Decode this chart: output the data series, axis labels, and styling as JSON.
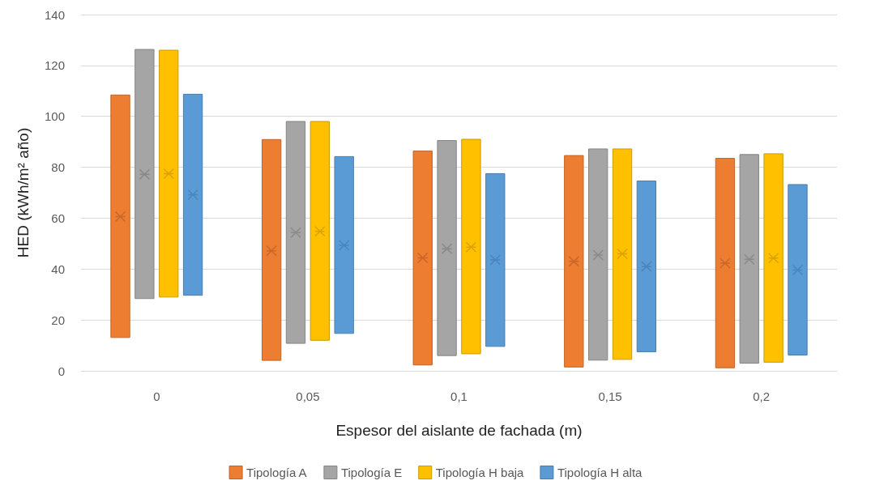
{
  "chart_data": {
    "type": "bar",
    "xlabel": "Espesor del aislante de fachada (m)",
    "ylabel": "HED (kWh/m² año)",
    "categories": [
      "0",
      "0,05",
      "0,1",
      "0,15",
      "0,2"
    ],
    "ylim": [
      0,
      140
    ],
    "yticks": [
      0,
      20,
      40,
      60,
      80,
      100,
      120,
      140
    ],
    "grid": "y",
    "legend": "bottom",
    "marker": "cross",
    "series": [
      {
        "name": "Tipología A",
        "color": "#ed7d31",
        "base": [
          13.1,
          4.1,
          2.3,
          1.5,
          1.2
        ],
        "values": [
          95.3,
          86.8,
          84.1,
          83.1,
          82.3
        ]
      },
      {
        "name": "Tipología E",
        "color": "#a5a5a5",
        "base": [
          28.4,
          10.8,
          6,
          4.2,
          3
        ],
        "values": [
          97.9,
          87.2,
          84.5,
          83,
          82
        ]
      },
      {
        "name": "Tipología H baja",
        "color": "#ffc000",
        "base": [
          29,
          12,
          6.7,
          4.5,
          3.4
        ],
        "values": [
          97,
          86,
          84.3,
          82.7,
          81.9
        ]
      },
      {
        "name": "Tipología H alta",
        "color": "#5b9bd5",
        "base": [
          29.7,
          14.7,
          9.6,
          7.5,
          6.2
        ],
        "values": [
          79,
          69.5,
          67.9,
          67.1,
          67
        ]
      },
      {
        "type": "scatter",
        "color": "#c8672a",
        "x": [
          "0",
          "0,05",
          "0,1",
          "0,15",
          "0,2"
        ],
        "values": [
          60.6,
          47.2,
          44.4,
          43,
          42.3
        ]
      },
      {
        "type": "scatter",
        "color": "#8a8a8a",
        "x": [
          "0",
          "0,05",
          "0,1",
          "0,15",
          "0,2"
        ],
        "values": [
          77.2,
          54.3,
          48,
          45.5,
          43.8
        ]
      },
      {
        "type": "scatter",
        "color": "#d9a300",
        "x": [
          "0",
          "0,05",
          "0,1",
          "0,15",
          "0,2"
        ],
        "values": [
          77.5,
          54.8,
          48.6,
          46,
          44.3
        ]
      },
      {
        "type": "scatter",
        "color": "#4a85bd",
        "x": [
          "0",
          "0,05",
          "0,1",
          "0,15",
          "0,2"
        ],
        "values": [
          69.2,
          49.3,
          43.6,
          41,
          39.6
        ]
      }
    ]
  }
}
